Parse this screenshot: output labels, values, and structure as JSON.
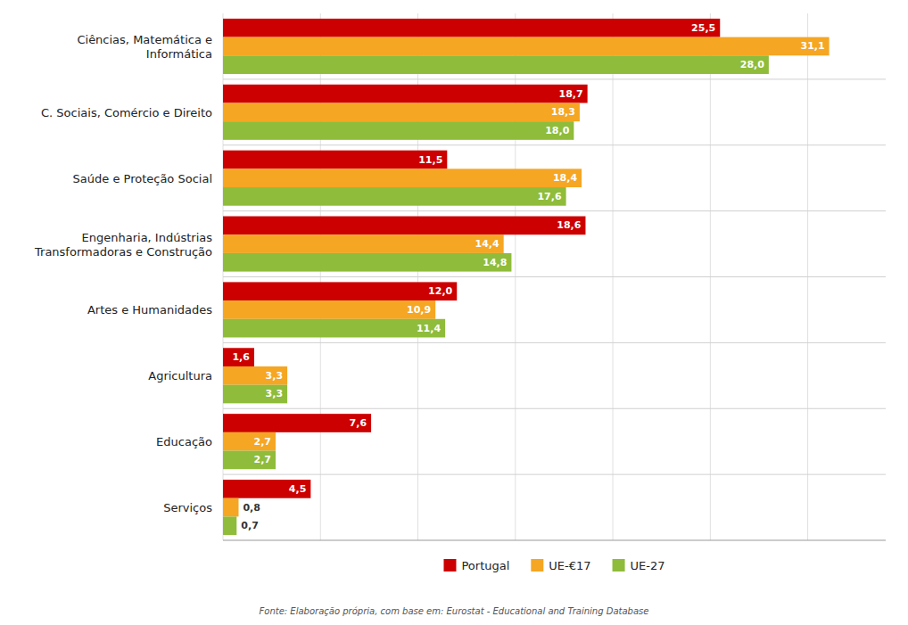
{
  "chart_data": {
    "type": "bar",
    "orientation": "horizontal",
    "categories": [
      "Ciências, Matemática e\nInformática",
      "C. Sociais, Comércio e Direito",
      "Saúde e Proteção Social",
      "Engenharia, Indústrias\nTransformadoras e Construção",
      "Artes e Humanidades",
      "Agricultura",
      "Educação",
      "Serviços"
    ],
    "series": [
      {
        "name": "Portugal",
        "color": "#cc0000",
        "values": [
          25.5,
          18.7,
          11.5,
          18.6,
          12.0,
          1.6,
          7.6,
          4.5
        ],
        "value_labels": [
          "25,5",
          "18,7",
          "11,5",
          "18,6",
          "12,0",
          "1,6",
          "7,6",
          "4,5"
        ]
      },
      {
        "name": "UE-€17",
        "color": "#f5a623",
        "values": [
          31.1,
          18.3,
          18.4,
          14.4,
          10.9,
          3.3,
          2.7,
          0.8
        ],
        "value_labels": [
          "31,1",
          "18,3",
          "18,4",
          "14,4",
          "10,9",
          "3,3",
          "2,7",
          "0,8"
        ]
      },
      {
        "name": "UE-27",
        "color": "#8fbc3a",
        "values": [
          28.0,
          18.0,
          17.6,
          14.8,
          11.4,
          3.3,
          2.7,
          0.7
        ],
        "value_labels": [
          "28,0",
          "18,0",
          "17,6",
          "14,8",
          "11,4",
          "3,3",
          "2,7",
          "0,7"
        ]
      }
    ],
    "xlim": [
      0,
      34
    ],
    "xticks": [
      0,
      5,
      10,
      15,
      20,
      25,
      30
    ],
    "grid": true,
    "tick_labels": "y",
    "data_labels": true,
    "legend": "bottom",
    "annotations": [
      "Fonte: Elaboração própria, com base em: Eurostat - Educational and Training Database"
    ]
  }
}
